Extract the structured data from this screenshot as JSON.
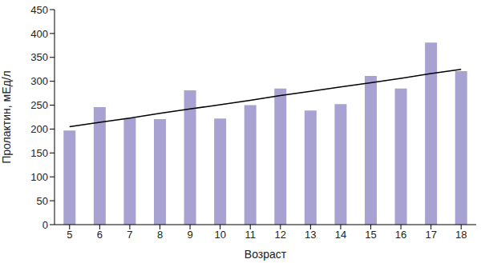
{
  "chart_data": {
    "type": "bar",
    "x_label": "Возраст",
    "y_label": "Пролактин, мЕд/л",
    "categories": [
      "5",
      "6",
      "7",
      "8",
      "9",
      "10",
      "11",
      "12",
      "13",
      "14",
      "15",
      "16",
      "17",
      "18"
    ],
    "series": [
      {
        "type": "bar",
        "color": "#a8a2d2",
        "values": [
          197,
          246,
          223,
          221,
          281,
          222,
          250,
          285,
          239,
          252,
          311,
          285,
          381,
          321
        ]
      },
      {
        "type": "line",
        "color": "#000000",
        "values": [
          205,
          214,
          223,
          233,
          242,
          251,
          260,
          270,
          279,
          288,
          297,
          306,
          316,
          325
        ]
      }
    ],
    "ylim": [
      0,
      450
    ],
    "yticks": [
      0,
      50,
      100,
      150,
      200,
      250,
      300,
      350,
      400,
      450
    ],
    "grid": false
  }
}
